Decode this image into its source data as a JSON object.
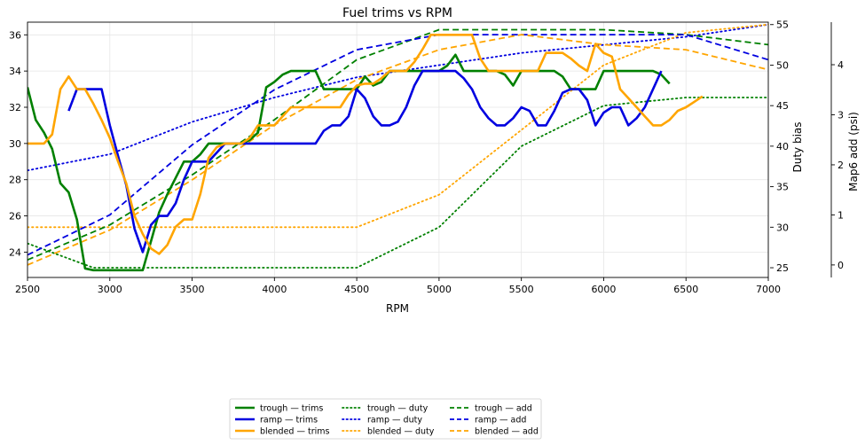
{
  "chart_data": {
    "type": "line",
    "title": "Fuel trims vs RPM",
    "xlabel": "RPM",
    "ylabel": "",
    "ylabel_right1": "Duty bias",
    "ylabel_right2": "Map6 add (psi)",
    "xlim": [
      2500,
      7000
    ],
    "ylim": [
      22.6,
      36.7
    ],
    "ylim_right1": [
      23.8,
      55.3
    ],
    "ylim_right2": [
      -0.25,
      4.85
    ],
    "xticks": [
      2500,
      3000,
      3500,
      4000,
      4500,
      5000,
      5500,
      6000,
      6500,
      7000
    ],
    "yticks": [
      24,
      26,
      28,
      30,
      32,
      34,
      36
    ],
    "yticks_right1": [
      25,
      30,
      35,
      40,
      45,
      50,
      55
    ],
    "yticks_right2": [
      0,
      1,
      2,
      3,
      4
    ],
    "grid": true,
    "legend_position": "bottom-center",
    "legend_columns": 3,
    "series": [
      {
        "name": "trough — trims",
        "axis": "left",
        "color": "#008000",
        "style": "solid",
        "x": [
          2500,
          2550,
          2600,
          2650,
          2700,
          2750,
          2800,
          2850,
          2900,
          2950,
          3000,
          3100,
          3200,
          3250,
          3300,
          3350,
          3400,
          3450,
          3500,
          3550,
          3600,
          3650,
          3700,
          3750,
          3800,
          3850,
          3900,
          3950,
          4000,
          4050,
          4100,
          4150,
          4200,
          4250,
          4300,
          4350,
          4400,
          4450,
          4500,
          4550,
          4600,
          4650,
          4700,
          4750,
          4800,
          4850,
          4900,
          4950,
          5000,
          5050,
          5100,
          5150,
          5200,
          5250,
          5300,
          5350,
          5400,
          5450,
          5500,
          5550,
          5600,
          5650,
          5700,
          5750,
          5800,
          5850,
          5900,
          5950,
          6000,
          6050,
          6100,
          6150,
          6200,
          6250,
          6300,
          6350,
          6400
        ],
        "y": [
          33.1,
          31.3,
          30.6,
          29.7,
          27.8,
          27.3,
          25.8,
          23.1,
          23.0,
          23.0,
          23.0,
          23.0,
          23.0,
          24.6,
          26.2,
          27.2,
          28.1,
          29.0,
          29.0,
          29.4,
          30.0,
          30.0,
          30.0,
          30.0,
          30.0,
          30.2,
          30.6,
          33.1,
          33.4,
          33.8,
          34.0,
          34.0,
          34.0,
          34.0,
          33.0,
          33.0,
          33.0,
          33.0,
          33.0,
          33.7,
          33.2,
          33.4,
          34.0,
          34.0,
          34.0,
          34.0,
          34.0,
          34.0,
          34.0,
          34.3,
          34.9,
          34.0,
          34.0,
          34.0,
          34.0,
          34.0,
          33.8,
          33.2,
          34.0,
          34.0,
          34.0,
          34.0,
          34.0,
          33.7,
          33.0,
          33.0,
          33.0,
          33.0,
          34.0,
          34.0,
          34.0,
          34.0,
          34.0,
          34.0,
          34.0,
          33.8,
          33.3
        ]
      },
      {
        "name": "ramp — trims",
        "axis": "left",
        "color": "#0000e0",
        "style": "solid",
        "x": [
          2750,
          2800,
          2850,
          2900,
          2950,
          3000,
          3050,
          3100,
          3150,
          3200,
          3250,
          3300,
          3350,
          3400,
          3450,
          3500,
          3550,
          3600,
          3650,
          3700,
          3750,
          3800,
          3850,
          3900,
          3950,
          4000,
          4050,
          4100,
          4150,
          4200,
          4250,
          4300,
          4350,
          4400,
          4450,
          4500,
          4550,
          4600,
          4650,
          4700,
          4750,
          4800,
          4850,
          4900,
          4950,
          5000,
          5050,
          5100,
          5150,
          5200,
          5250,
          5300,
          5350,
          5400,
          5450,
          5500,
          5550,
          5600,
          5650,
          5700,
          5750,
          5800,
          5850,
          5900,
          5950,
          6000,
          6050,
          6100,
          6150,
          6200,
          6250,
          6300,
          6350
        ],
        "y": [
          31.8,
          33.0,
          33.0,
          33.0,
          33.0,
          31.0,
          29.3,
          27.7,
          25.3,
          24.0,
          25.5,
          26.0,
          26.0,
          26.7,
          28.0,
          29.0,
          29.0,
          29.0,
          29.5,
          30.0,
          30.0,
          30.0,
          30.0,
          30.0,
          30.0,
          30.0,
          30.0,
          30.0,
          30.0,
          30.0,
          30.0,
          30.7,
          31.0,
          31.0,
          31.5,
          33.0,
          32.5,
          31.5,
          31.0,
          31.0,
          31.2,
          32.0,
          33.2,
          34.0,
          34.0,
          34.0,
          34.0,
          34.0,
          33.6,
          33.0,
          32.0,
          31.4,
          31.0,
          31.0,
          31.4,
          32.0,
          31.8,
          31.0,
          31.0,
          31.8,
          32.8,
          33.0,
          33.0,
          32.4,
          31.0,
          31.7,
          32.0,
          32.0,
          31.0,
          31.4,
          32.0,
          33.0,
          34.0
        ]
      },
      {
        "name": "blended — trims",
        "axis": "left",
        "color": "#ffa500",
        "style": "solid",
        "x": [
          2500,
          2550,
          2600,
          2650,
          2700,
          2750,
          2800,
          2850,
          2900,
          2950,
          3000,
          3050,
          3100,
          3150,
          3200,
          3250,
          3300,
          3350,
          3400,
          3450,
          3500,
          3550,
          3600,
          3650,
          3700,
          3750,
          3800,
          3850,
          3900,
          3950,
          4000,
          4050,
          4100,
          4150,
          4200,
          4250,
          4300,
          4350,
          4400,
          4450,
          4500,
          4550,
          4600,
          4650,
          4700,
          4750,
          4800,
          4850,
          4900,
          4950,
          5000,
          5050,
          5100,
          5150,
          5200,
          5250,
          5300,
          5350,
          5400,
          5450,
          5500,
          5550,
          5600,
          5650,
          5700,
          5750,
          5800,
          5850,
          5900,
          5950,
          6000,
          6050,
          6100,
          6150,
          6200,
          6250,
          6300,
          6350,
          6400,
          6450,
          6500,
          6550,
          6600
        ],
        "y": [
          30.0,
          30.0,
          30.0,
          30.5,
          33.0,
          33.7,
          33.0,
          33.0,
          32.2,
          31.3,
          30.3,
          29.0,
          27.8,
          26.0,
          25.0,
          24.2,
          23.9,
          24.4,
          25.4,
          25.8,
          25.8,
          27.2,
          29.2,
          29.8,
          30.0,
          30.0,
          30.0,
          30.3,
          31.0,
          31.0,
          31.0,
          31.5,
          32.0,
          32.0,
          32.0,
          32.0,
          32.0,
          32.0,
          32.0,
          32.7,
          33.2,
          33.3,
          33.3,
          33.6,
          34.0,
          34.0,
          34.0,
          34.5,
          35.2,
          36.0,
          36.0,
          36.0,
          36.0,
          36.0,
          36.0,
          34.7,
          34.0,
          34.0,
          34.0,
          34.0,
          34.0,
          34.0,
          34.0,
          35.0,
          35.0,
          35.0,
          34.7,
          34.3,
          34.0,
          35.5,
          35.0,
          34.8,
          33.0,
          32.5,
          32.0,
          31.5,
          31.0,
          31.0,
          31.3,
          31.8,
          32.0,
          32.3,
          32.6
        ]
      },
      {
        "name": "trough — duty",
        "axis": "right1",
        "color": "#008000",
        "style": "dotted",
        "x": [
          2500,
          2900,
          3000,
          3200,
          4000,
          4500,
          5000,
          5500,
          6000,
          6500,
          7000
        ],
        "y": [
          28,
          25,
          25,
          25,
          25,
          25,
          30,
          40,
          45,
          46,
          46
        ]
      },
      {
        "name": "ramp — duty",
        "axis": "right1",
        "color": "#0000e0",
        "style": "dotted",
        "x": [
          2500,
          3000,
          3500,
          4000,
          4500,
          5000,
          5500,
          6000,
          6500,
          7000
        ],
        "y": [
          37,
          39,
          43,
          46,
          48.5,
          50,
          51.5,
          52.5,
          53.5,
          55
        ]
      },
      {
        "name": "blended — duty",
        "axis": "right1",
        "color": "#ffa500",
        "style": "dotted",
        "x": [
          2500,
          3000,
          3500,
          4000,
          4500,
          5000,
          5500,
          6000,
          6500,
          7000
        ],
        "y": [
          30,
          30,
          30,
          30,
          30,
          34,
          42,
          50,
          54,
          55
        ]
      },
      {
        "name": "trough — add",
        "axis": "right2",
        "color": "#008000",
        "style": "dashed",
        "x": [
          2500,
          3000,
          3500,
          4000,
          4500,
          5000,
          5500,
          6000,
          6500,
          7000
        ],
        "y": [
          0.1,
          0.8,
          1.8,
          2.9,
          4.1,
          4.7,
          4.7,
          4.7,
          4.6,
          4.4
        ]
      },
      {
        "name": "ramp — add",
        "axis": "right2",
        "color": "#0000e0",
        "style": "dashed",
        "x": [
          2500,
          3000,
          3500,
          4000,
          4500,
          5000,
          5500,
          6000,
          6500,
          7000
        ],
        "y": [
          0.2,
          1.0,
          2.4,
          3.5,
          4.3,
          4.6,
          4.6,
          4.6,
          4.6,
          4.1
        ]
      },
      {
        "name": "blended — add",
        "axis": "right2",
        "color": "#ffa500",
        "style": "dashed",
        "x": [
          2500,
          3000,
          3500,
          4000,
          4500,
          5000,
          5500,
          6000,
          6500,
          7000
        ],
        "y": [
          0.0,
          0.7,
          1.7,
          2.8,
          3.7,
          4.3,
          4.6,
          4.4,
          4.3,
          3.9
        ]
      }
    ]
  }
}
